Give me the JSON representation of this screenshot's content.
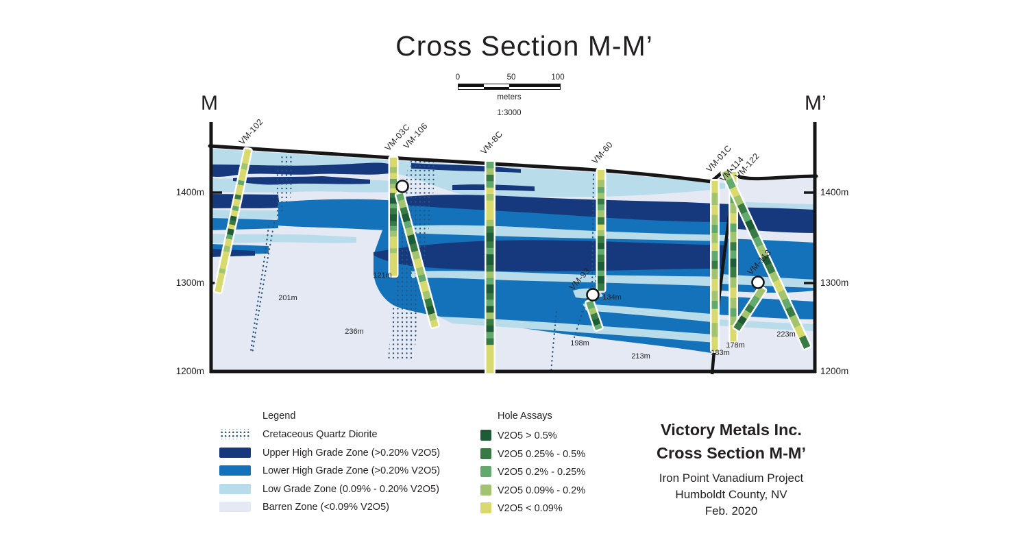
{
  "title": "Cross Section M-M’",
  "colors": {
    "zone_upper": "#16397d",
    "zone_lower": "#1372ba",
    "zone_low": "#b9dcea",
    "zone_barren": "#e4e9f4",
    "a1": "#1e5b37",
    "a2": "#377a43",
    "a3": "#61a96c",
    "a4": "#a3c46e",
    "a5": "#d8da6d",
    "dot": "#27557b",
    "ink": "#161616",
    "text": "#231f20"
  },
  "scale_bar": {
    "t0": "0",
    "t50": "50",
    "t100": "100",
    "unit": "meters",
    "ratio": "1:3000"
  },
  "section": {
    "left_marker": "M",
    "right_marker": "M’",
    "elevations": [
      "1400m",
      "1300m",
      "1200m"
    ],
    "holes": [
      {
        "name": "VM-102",
        "depth": "201m",
        "collar": [
          362,
          218
        ],
        "angle": 12,
        "length": 212,
        "width": 9,
        "label_at": [
          354,
          212
        ],
        "depth_at": [
          420,
          438
        ],
        "circle": null,
        "segments": [
          [
            "a5",
            10
          ],
          [
            "a4",
            4
          ],
          [
            "a5",
            8
          ],
          [
            "a3",
            3
          ],
          [
            "a5",
            7
          ],
          [
            "a2",
            3
          ],
          [
            "a5",
            5
          ],
          [
            "a3",
            3
          ],
          [
            "a5",
            4
          ],
          [
            "a1",
            3
          ],
          [
            "a2",
            3
          ],
          [
            "a5",
            3
          ],
          [
            "a1",
            4
          ],
          [
            "a3",
            3
          ],
          [
            "a5",
            5
          ],
          [
            "a4",
            4
          ],
          [
            "a5",
            12
          ],
          [
            "a4",
            3
          ],
          [
            "a5",
            13
          ]
        ]
      },
      {
        "name": "VM-03C",
        "depth": "121m",
        "collar": [
          574,
          230
        ],
        "angle": 0,
        "length": 172,
        "width": 10,
        "label_at": [
          567,
          221
        ],
        "depth_at": [
          558,
          405
        ],
        "circle": null,
        "segments": [
          [
            "a5",
            8
          ],
          [
            "a4",
            5
          ],
          [
            "a5",
            5
          ],
          [
            "a3",
            4
          ],
          [
            "a4",
            4
          ],
          [
            "a5",
            4
          ],
          [
            "a2",
            4
          ],
          [
            "a1",
            5
          ],
          [
            "a3",
            4
          ],
          [
            "a2",
            5
          ],
          [
            "a1",
            6
          ],
          [
            "a2",
            4
          ],
          [
            "a3",
            4
          ],
          [
            "a4",
            5
          ],
          [
            "a5",
            10
          ],
          [
            "a4",
            4
          ],
          [
            "a5",
            19
          ]
        ]
      },
      {
        "name": "VM-106",
        "depth": "236m",
        "collar": [
          583,
          283
        ],
        "angle": -15,
        "length": 200,
        "width": 10,
        "label_at": [
          594,
          218
        ],
        "depth_at": [
          517,
          487
        ],
        "circle": [
          587,
          272
        ],
        "segments": [
          [
            "a3",
            5
          ],
          [
            "a4",
            6
          ],
          [
            "a2",
            5
          ],
          [
            "a1",
            6
          ],
          [
            "a3",
            5
          ],
          [
            "a4",
            6
          ],
          [
            "a1",
            7
          ],
          [
            "a2",
            6
          ],
          [
            "a4",
            6
          ],
          [
            "a5",
            7
          ],
          [
            "a4",
            6
          ],
          [
            "a3",
            5
          ],
          [
            "a5",
            8
          ],
          [
            "a4",
            6
          ],
          [
            "a2",
            6
          ],
          [
            "a1",
            6
          ],
          [
            "a4",
            5
          ],
          [
            "a5",
            5
          ]
        ]
      },
      {
        "name": "VM-8C",
        "depth": "",
        "collar": [
          715,
          236
        ],
        "angle": 0,
        "length": 308,
        "width": 11,
        "label_at": [
          707,
          226
        ],
        "depth_at": null,
        "circle": null,
        "segments": [
          [
            "a3",
            3
          ],
          [
            "a4",
            3
          ],
          [
            "a2",
            3
          ],
          [
            "a3",
            3
          ],
          [
            "a5",
            3
          ],
          [
            "a4",
            3
          ],
          [
            "a5",
            9
          ],
          [
            "a4",
            3
          ],
          [
            "a2",
            3
          ],
          [
            "a1",
            4
          ],
          [
            "a2",
            3
          ],
          [
            "a3",
            3
          ],
          [
            "a1",
            5
          ],
          [
            "a2",
            3
          ],
          [
            "a4",
            3
          ],
          [
            "a3",
            3
          ],
          [
            "a1",
            4
          ],
          [
            "a2",
            3
          ],
          [
            "a3",
            3
          ],
          [
            "a1",
            3
          ],
          [
            "a4",
            3
          ],
          [
            "a2",
            3
          ],
          [
            "a1",
            3
          ],
          [
            "a3",
            3
          ],
          [
            "a2",
            3
          ],
          [
            "a5",
            13
          ]
        ]
      },
      {
        "name": "VM-60",
        "depth": "134m",
        "collar": [
          877,
          248
        ],
        "angle": 0,
        "length": 176,
        "width": 10,
        "label_at": [
          869,
          240
        ],
        "depth_at": [
          893,
          437
        ],
        "circle": null,
        "segments": [
          [
            "a5",
            7
          ],
          [
            "a4",
            5
          ],
          [
            "a3",
            4
          ],
          [
            "a4",
            4
          ],
          [
            "a2",
            4
          ],
          [
            "a3",
            4
          ],
          [
            "a4",
            5
          ],
          [
            "a2",
            5
          ],
          [
            "a5",
            4
          ],
          [
            "a4",
            4
          ],
          [
            "a2",
            5
          ],
          [
            "a1",
            4
          ],
          [
            "a3",
            4
          ],
          [
            "a2",
            5
          ],
          [
            "a1",
            6
          ],
          [
            "a3",
            4
          ],
          [
            "a1",
            5
          ],
          [
            "a2",
            5
          ]
        ]
      },
      {
        "name": "VM-93",
        "depth": "198m",
        "collar": [
          860,
          440
        ],
        "angle": -19,
        "length": 42,
        "width": 10,
        "label_at": [
          836,
          424
        ],
        "depth_at": [
          846,
          504
        ],
        "circle": [
          865,
          430
        ],
        "segments": [
          [
            "a3",
            5
          ],
          [
            "a4",
            4
          ],
          [
            "a2",
            4
          ],
          [
            "a1",
            4
          ],
          [
            "a3",
            3
          ]
        ]
      },
      {
        "name": "VM-01C",
        "depth": "183m",
        "collar": [
          1043,
          264
        ],
        "angle": 0,
        "length": 248,
        "width": 9,
        "label_at": [
          1036,
          252
        ],
        "depth_at": [
          1051,
          518
        ],
        "circle": null,
        "segments": [
          [
            "a5",
            6
          ],
          [
            "a4",
            6
          ],
          [
            "a5",
            5
          ],
          [
            "a4",
            5
          ],
          [
            "a3",
            4
          ],
          [
            "a4",
            5
          ],
          [
            "a5",
            4
          ],
          [
            "a3",
            5
          ],
          [
            "a2",
            4
          ],
          [
            "a4",
            5
          ],
          [
            "a5",
            6
          ],
          [
            "a4",
            5
          ],
          [
            "a3",
            4
          ],
          [
            "a5",
            7
          ],
          [
            "a4",
            7
          ],
          [
            "a5",
            7
          ]
        ]
      },
      {
        "name": "VM-122",
        "depth": "178m",
        "collar": [
          1070,
          251
        ],
        "angle": 0,
        "length": 247,
        "width": 9,
        "label_at": [
          1078,
          262
        ],
        "depth_at": [
          1073,
          507
        ],
        "circle": null,
        "segments": [
          [
            "a5",
            6
          ],
          [
            "a4",
            5
          ],
          [
            "a3",
            4
          ],
          [
            "a4",
            5
          ],
          [
            "a5",
            5
          ],
          [
            "a3",
            4
          ],
          [
            "a4",
            5
          ],
          [
            "a2",
            4
          ],
          [
            "a3",
            4
          ],
          [
            "a1",
            4
          ],
          [
            "a2",
            5
          ],
          [
            "a4",
            5
          ],
          [
            "a5",
            5
          ],
          [
            "a4",
            5
          ],
          [
            "a3",
            4
          ],
          [
            "a4",
            4
          ],
          [
            "a5",
            8
          ]
        ]
      },
      {
        "name": "VM-114",
        "depth": "213m",
        "collar": [
          1058,
          250
        ],
        "angle": -25,
        "length": 283,
        "width": 10,
        "label_at": [
          1056,
          266
        ],
        "depth_at": [
          935,
          523
        ],
        "circle": null,
        "segments": [
          [
            "a4",
            4
          ],
          [
            "a3",
            4
          ],
          [
            "a5",
            4
          ],
          [
            "a4",
            4
          ],
          [
            "a2",
            4
          ],
          [
            "a3",
            4
          ],
          [
            "a1",
            4
          ],
          [
            "a2",
            4
          ],
          [
            "a3",
            4
          ],
          [
            "a4",
            5
          ],
          [
            "a1",
            4
          ],
          [
            "a2",
            4
          ],
          [
            "a4",
            4
          ],
          [
            "a5",
            5
          ],
          [
            "a4",
            4
          ],
          [
            "a3",
            4
          ],
          [
            "a2",
            4
          ],
          [
            "a4",
            5
          ],
          [
            "a5",
            5
          ],
          [
            "a2",
            5
          ]
        ]
      },
      {
        "name": "VM-113",
        "depth": "223m",
        "collar": [
          1113,
          421
        ],
        "angle": 33,
        "length": 70,
        "width": 10,
        "label_at": [
          1096,
          402
        ],
        "depth_at": [
          1147,
          491
        ],
        "circle": [
          1106,
          412
        ],
        "segments": [
          [
            "a4",
            3
          ],
          [
            "a3",
            3
          ],
          [
            "a2",
            2
          ],
          [
            "a4",
            2
          ],
          [
            "a1",
            2
          ],
          [
            "a2",
            2
          ]
        ]
      }
    ]
  },
  "legend": {
    "header": "Legend",
    "items": [
      {
        "label": "Cretaceous Quartz Diorite",
        "swatch": "dots",
        "color": "dot"
      },
      {
        "label": "Upper High Grade Zone (>0.20% V2O5)",
        "swatch": "fill",
        "color": "zone_upper"
      },
      {
        "label": "Lower High Grade Zone (>0.20% V2O5)",
        "swatch": "fill",
        "color": "zone_lower"
      },
      {
        "label": "Low Grade Zone (0.09% - 0.20% V2O5)",
        "swatch": "fill",
        "color": "zone_low"
      },
      {
        "label": "Barren Zone (<0.09% V2O5)",
        "swatch": "fill",
        "color": "zone_barren"
      }
    ]
  },
  "assays": {
    "header": "Hole Assays",
    "items": [
      {
        "label": "V2O5 > 0.5%",
        "color": "a1"
      },
      {
        "label": "V2O5 0.25% - 0.5%",
        "color": "a2"
      },
      {
        "label": "V2O5 0.2% - 0.25%",
        "color": "a3"
      },
      {
        "label": "V2O5 0.09% - 0.2%",
        "color": "a4"
      },
      {
        "label": "V2O5 < 0.09%",
        "color": "a5"
      }
    ]
  },
  "title_block": {
    "line1": "Victory Metals Inc.",
    "line2": "Cross Section M-M’",
    "line3": "Iron Point Vanadium Project",
    "line4": "Humboldt County, NV",
    "line5": "Feb. 2020"
  }
}
